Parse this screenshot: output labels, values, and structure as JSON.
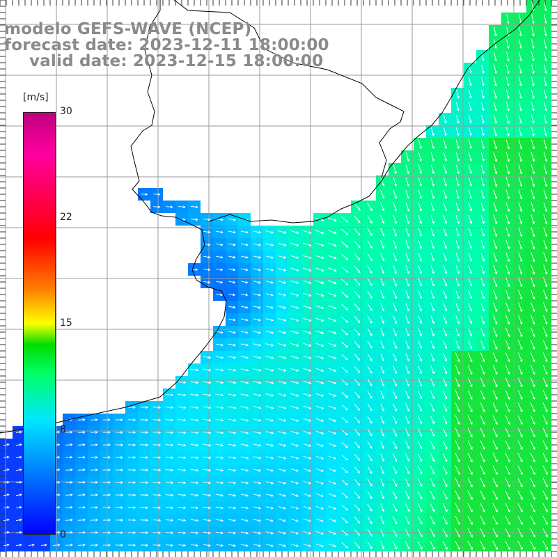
{
  "title": {
    "line1": "modelo GEFS-WAVE (NCEP)",
    "line2": "forecast date: 2023-12-11 18:00:00",
    "line3": "valid date: 2023-12-15 18:00:00"
  },
  "colorbar": {
    "unit": "[m/s]",
    "ticks": [
      "30",
      "22",
      "15",
      "8",
      "0"
    ],
    "colors": [
      "#0000ff",
      "#00e6ff",
      "#00dd00",
      "#ffff00",
      "#ff0000",
      "#c00080"
    ]
  },
  "map": {
    "land_color": "#ffffff",
    "grid_color": "#9a9a9a",
    "coast_color": "#000000",
    "arrow_color": "#ffffff"
  }
}
